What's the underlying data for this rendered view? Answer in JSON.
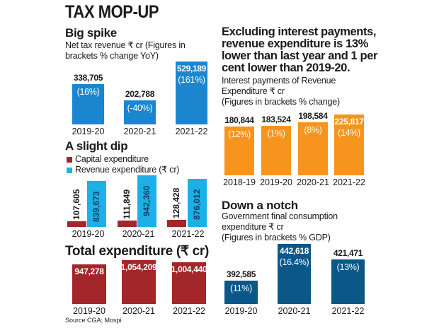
{
  "title": "TAX MOP-UP",
  "source": "Source:CGA; Mospi",
  "colors": {
    "tax": "#1a86cf",
    "capital": "#a3262a",
    "revenue": "#1db0e6",
    "total": "#a3262a",
    "interest": "#f7941d",
    "consumption": "#0b5788"
  },
  "chart_data": [
    {
      "type": "bar",
      "title": "Big spike",
      "subtitle": [
        "Net tax revenue ₹ cr (Figures in",
        "brackets % change YoY)"
      ],
      "categories": [
        "2019-20",
        "2020-21",
        "2021-22"
      ],
      "values": [
        338705,
        202788,
        529189
      ],
      "values_text": [
        "338,705",
        "202,788",
        "529,189"
      ],
      "pct": [
        "(16%)",
        "(-40%)",
        "(161%)"
      ]
    },
    {
      "type": "bar",
      "title": "A slight dip",
      "legend": [
        "Capital expenditure",
        "Revenue expenditure (₹ cr)"
      ],
      "categories": [
        "2019-20",
        "2020-21",
        "2021-22"
      ],
      "series": [
        {
          "name": "Capital expenditure",
          "values": [
            107605,
            111849,
            128428
          ],
          "values_text": [
            "107,605",
            "111,849",
            "128,428"
          ]
        },
        {
          "name": "Revenue expenditure (₹ cr)",
          "values": [
            839673,
            942360,
            876012
          ],
          "values_text": [
            "839,673",
            "942,360",
            "876,012"
          ]
        }
      ]
    },
    {
      "type": "bar",
      "title": "Total expenditure (₹ cr)",
      "categories": [
        "2019-20",
        "2020-21",
        "2021-22"
      ],
      "values": [
        947278,
        1054209,
        1004440
      ],
      "values_text": [
        "947,278",
        "1,054,209",
        "1,004,440"
      ]
    },
    {
      "type": "bar",
      "headline": [
        "Excluding interest payments,",
        "revenue expenditure is 13%",
        "lower than last year and 1 per",
        "cent lower than 2019-20."
      ],
      "subtitle": [
        "Interest payments of Revenue",
        "Expenditure ₹ cr",
        "(Figures in brackets % change)"
      ],
      "categories": [
        "2018-19",
        "2019-20",
        "2020-21",
        "2021-22"
      ],
      "values": [
        180844,
        183524,
        198584,
        225817
      ],
      "values_text": [
        "180,844",
        "183,524",
        "198,584",
        "225,817"
      ],
      "pct": [
        "(12%)",
        "(1%)",
        "(8%)",
        "(14%)"
      ]
    },
    {
      "type": "bar",
      "title": "Down a notch",
      "subtitle": [
        "Government final consumption",
        "expenditure ₹ cr",
        "(Figures in brackets % GDP)"
      ],
      "categories": [
        "2019-20",
        "2020-21",
        "2021-22"
      ],
      "values": [
        392585,
        442618,
        421471
      ],
      "values_text": [
        "392,585",
        "442,618",
        "421,471"
      ],
      "pct": [
        "(11%)",
        "(16.4%)",
        "(13%)"
      ]
    }
  ]
}
